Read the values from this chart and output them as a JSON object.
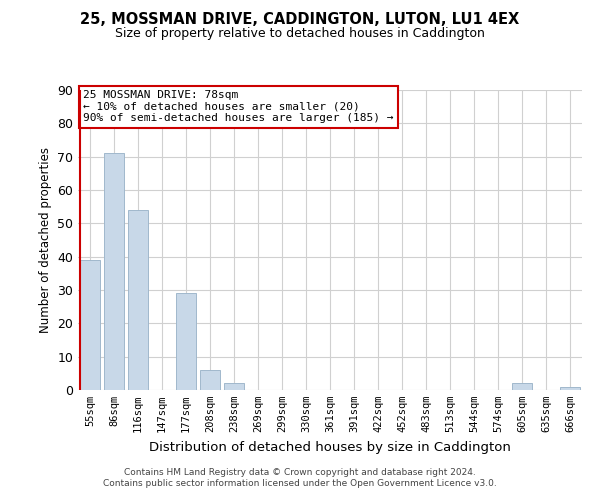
{
  "title1": "25, MOSSMAN DRIVE, CADDINGTON, LUTON, LU1 4EX",
  "title2": "Size of property relative to detached houses in Caddington",
  "xlabel": "Distribution of detached houses by size in Caddington",
  "ylabel": "Number of detached properties",
  "footer1": "Contains HM Land Registry data © Crown copyright and database right 2024.",
  "footer2": "Contains public sector information licensed under the Open Government Licence v3.0.",
  "categories": [
    "55sqm",
    "86sqm",
    "116sqm",
    "147sqm",
    "177sqm",
    "208sqm",
    "238sqm",
    "269sqm",
    "299sqm",
    "330sqm",
    "361sqm",
    "391sqm",
    "422sqm",
    "452sqm",
    "483sqm",
    "513sqm",
    "544sqm",
    "574sqm",
    "605sqm",
    "635sqm",
    "666sqm"
  ],
  "values": [
    39,
    71,
    54,
    0,
    29,
    6,
    2,
    0,
    0,
    0,
    0,
    0,
    0,
    0,
    0,
    0,
    0,
    0,
    2,
    0,
    1
  ],
  "bar_color": "#c8d8e8",
  "bar_edge_color": "#a0b8cc",
  "red_line_bin": 0,
  "annotation_title": "25 MOSSMAN DRIVE: 78sqm",
  "annotation_line1": "← 10% of detached houses are smaller (20)",
  "annotation_line2": "90% of semi-detached houses are larger (185) →",
  "ylim": [
    0,
    90
  ],
  "yticks": [
    0,
    10,
    20,
    30,
    40,
    50,
    60,
    70,
    80,
    90
  ],
  "background_color": "#ffffff",
  "grid_color": "#d0d0d0",
  "red_color": "#cc0000",
  "bar_width": 0.85
}
